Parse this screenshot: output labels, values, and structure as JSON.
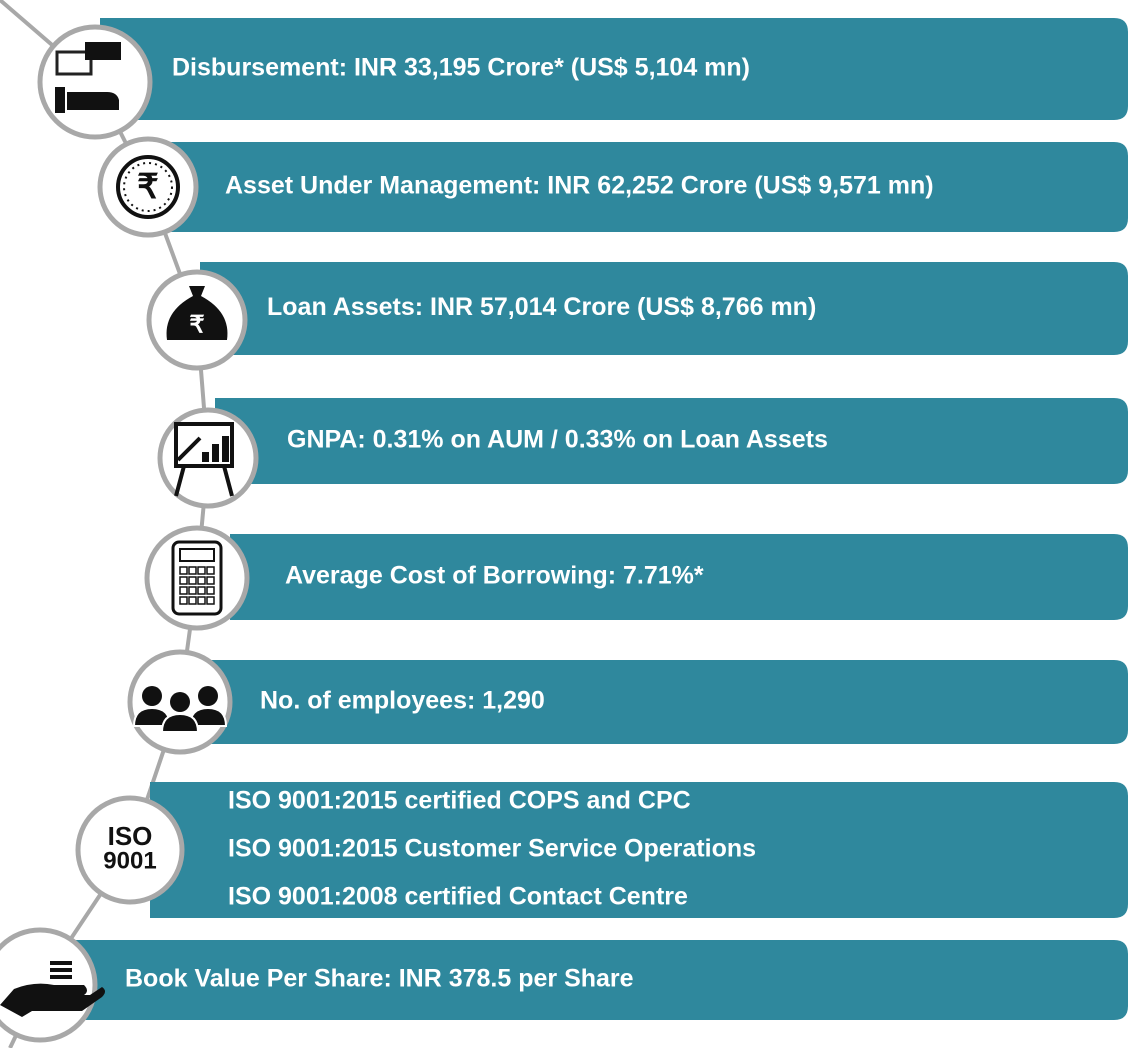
{
  "items": [
    {
      "lines": [
        "Disbursement: INR 33,195 Crore* (US$ 5,104 mn)"
      ]
    },
    {
      "lines": [
        "Asset Under Management: INR 62,252 Crore (US$ 9,571 mn)"
      ],
      "icon_text": [
        "₹"
      ]
    },
    {
      "lines": [
        "Loan Assets: INR 57,014 Crore (US$ 8,766 mn)"
      ],
      "icon_text": [
        "₹"
      ]
    },
    {
      "lines": [
        "GNPA: 0.31% on AUM / 0.33% on Loan Assets"
      ]
    },
    {
      "lines": [
        "Average Cost of Borrowing: 7.71%*"
      ]
    },
    {
      "lines": [
        "No. of employees: 1,290"
      ]
    },
    {
      "lines": [
        "ISO 9001:2015 certified COPS and CPC",
        "ISO 9001:2015 Customer Service Operations",
        "ISO 9001:2008 certified Contact Centre"
      ],
      "icon_text": [
        "ISO",
        "9001"
      ]
    },
    {
      "lines": [
        "Book Value Per Share: INR 378.5 per Share"
      ]
    }
  ]
}
